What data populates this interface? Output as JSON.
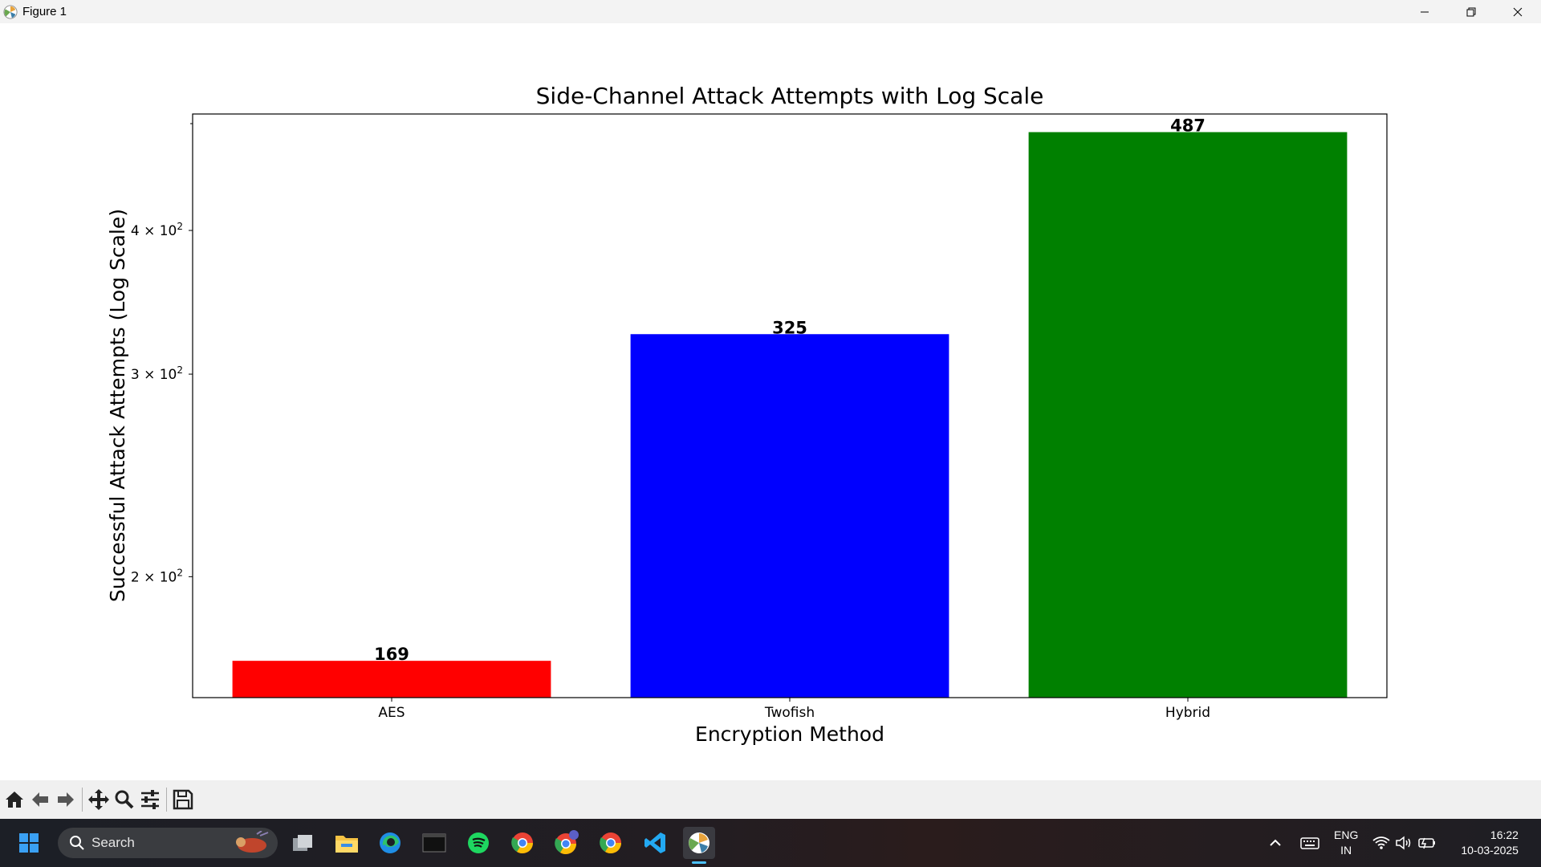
{
  "window": {
    "title": "Figure 1"
  },
  "chart_data": {
    "type": "bar",
    "title": "Side-Channel Attack Attempts with Log Scale",
    "xlabel": "Encryption Method",
    "ylabel": "Successful Attack Attempts (Log Scale)",
    "y_scale": "log",
    "ylim": [
      157,
      505
    ],
    "categories": [
      "AES",
      "Twofish",
      "Hybrid"
    ],
    "values": [
      169,
      325,
      487
    ],
    "data_labels": [
      "169",
      "325",
      "487"
    ],
    "colors": [
      "#ff0000",
      "#0000ff",
      "#008000"
    ],
    "yticks": [
      {
        "value": 200,
        "label_mantissa": "2 × 10",
        "label_exp": "2"
      },
      {
        "value": 300,
        "label_mantissa": "3 × 10",
        "label_exp": "2"
      },
      {
        "value": 400,
        "label_mantissa": "4 × 10",
        "label_exp": "2"
      }
    ],
    "grid": false,
    "legend": "none"
  },
  "toolbar": {
    "buttons": [
      "home-icon",
      "back-icon",
      "forward-icon",
      "pan-icon",
      "zoom-icon",
      "configure-icon",
      "save-icon"
    ]
  },
  "taskbar": {
    "search_label": "Search",
    "apps": [
      "task-view-icon",
      "file-explorer-icon",
      "edge-icon",
      "terminal-icon",
      "spotify-icon",
      "chrome-icon",
      "chrome-profile-icon",
      "chrome-icon",
      "vscode-icon",
      "matplotlib-icon"
    ],
    "language_line1": "ENG",
    "language_line2": "IN",
    "time": "16:22",
    "date": "10-03-2025"
  },
  "theme": {
    "accent": "#0078d4",
    "toolbar_bg": "#f0f0f0"
  }
}
